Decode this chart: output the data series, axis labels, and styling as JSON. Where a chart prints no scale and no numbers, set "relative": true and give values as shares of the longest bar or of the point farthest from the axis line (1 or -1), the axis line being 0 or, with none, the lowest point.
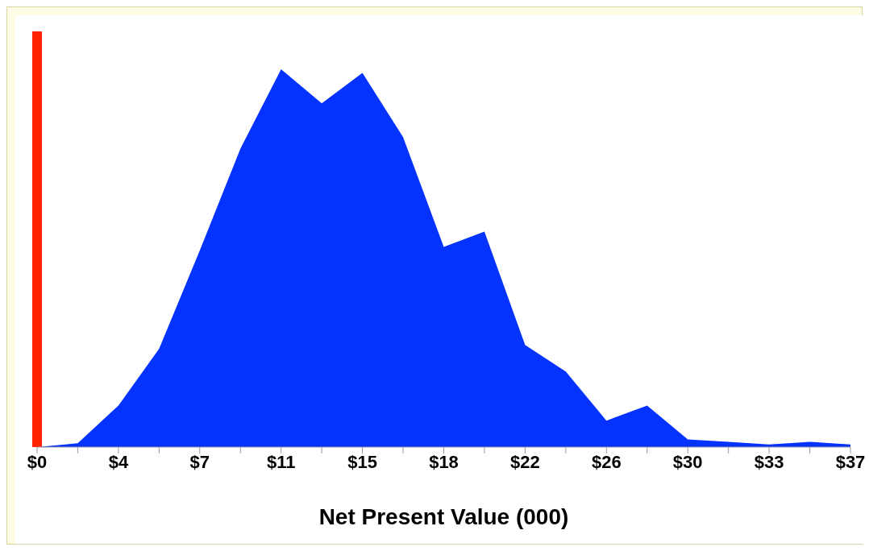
{
  "chart_data": {
    "type": "area",
    "xlabel": "Net Present Value (000)",
    "relative": true,
    "x": [
      0,
      1.85,
      3.7,
      5.55,
      7.4,
      9.25,
      11.1,
      12.95,
      14.8,
      16.65,
      18.5,
      20.35,
      22.2,
      24.05,
      25.9,
      27.75,
      29.6,
      31.45,
      33.3,
      35.15,
      37
    ],
    "series": [
      {
        "color": "#0433ff",
        "values": [
          0,
          0.01,
          0.11,
          0.26,
          0.52,
          0.79,
          1,
          0.91,
          0.99,
          0.82,
          0.53,
          0.57,
          0.27,
          0.2,
          0.07,
          0.11,
          0.02,
          0.014,
          0.007,
          0.014,
          0.007
        ]
      }
    ],
    "xlim": [
      0,
      37
    ],
    "xticks": [
      {
        "value": 0,
        "label": "$0"
      },
      {
        "value": 1.85,
        "label": null
      },
      {
        "value": 3.7,
        "label": "$4"
      },
      {
        "value": 5.55,
        "label": null
      },
      {
        "value": 7.4,
        "label": "$7"
      },
      {
        "value": 9.25,
        "label": null
      },
      {
        "value": 11.1,
        "label": "$11"
      },
      {
        "value": 12.95,
        "label": null
      },
      {
        "value": 14.8,
        "label": "$15"
      },
      {
        "value": 16.65,
        "label": null
      },
      {
        "value": 18.5,
        "label": "$18"
      },
      {
        "value": 20.35,
        "label": null
      },
      {
        "value": 22.2,
        "label": "$22"
      },
      {
        "value": 24.05,
        "label": null
      },
      {
        "value": 25.9,
        "label": "$26"
      },
      {
        "value": 27.75,
        "label": null
      },
      {
        "value": 29.6,
        "label": "$30"
      },
      {
        "value": 31.45,
        "label": null
      },
      {
        "value": 33.3,
        "label": "$33"
      },
      {
        "value": 35.15,
        "label": null
      },
      {
        "value": 37,
        "label": "$37"
      }
    ],
    "ref_lines": [
      {
        "axis": "x",
        "value": 0,
        "color": "#ff2200"
      }
    ],
    "grid": false,
    "legend": false
  }
}
